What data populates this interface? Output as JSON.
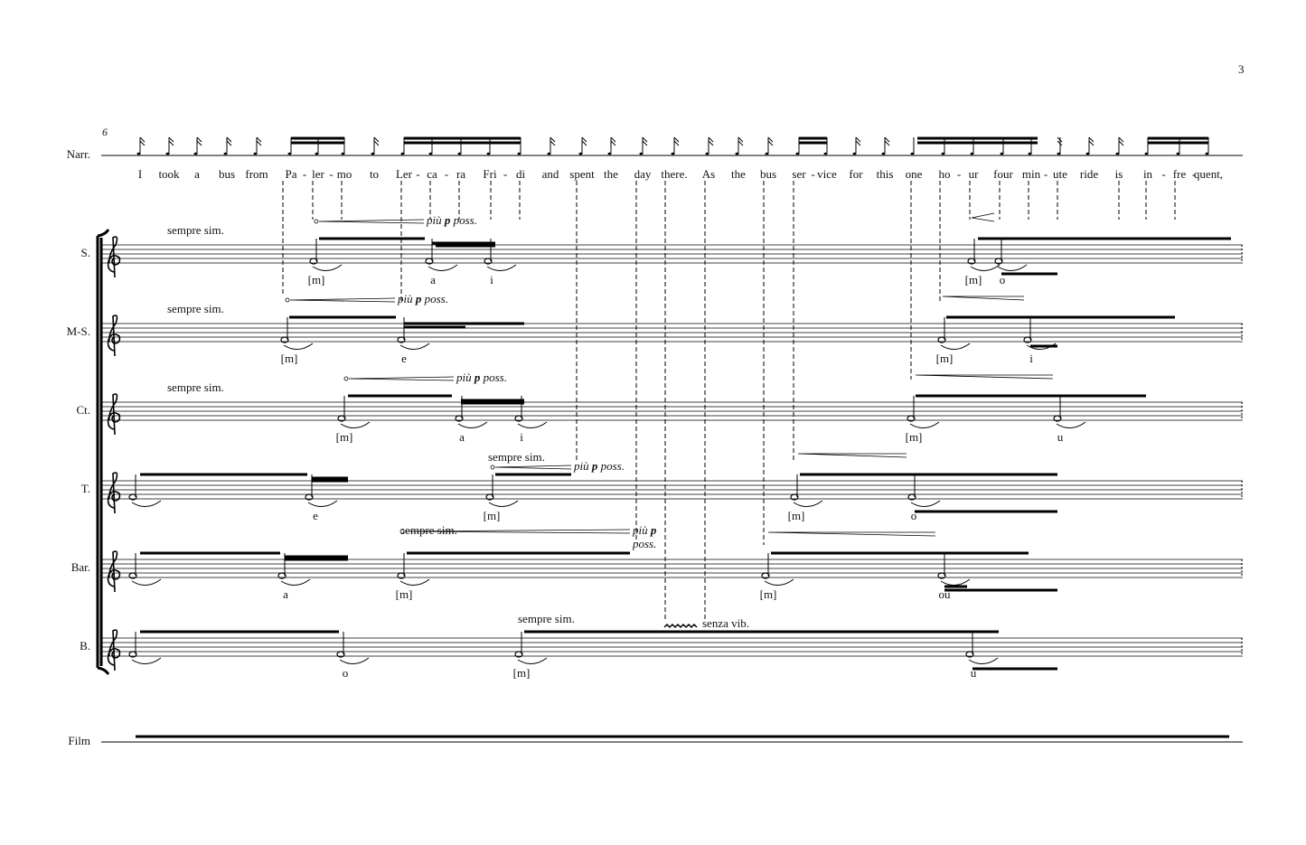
{
  "page_number": "3",
  "measure_number": "6",
  "narrator": {
    "label": "Narr.",
    "syllables": [
      "I",
      "took",
      "a",
      "bus",
      "from",
      "Pa",
      "-",
      "ler",
      "-",
      "mo",
      "to",
      "Ler",
      "-",
      "ca",
      "-",
      "ra",
      "Fri",
      "-",
      "di",
      "and",
      "spent",
      "the",
      "day",
      "there.",
      "As",
      "the",
      "bus",
      "ser",
      "-",
      "vice",
      "for",
      "this",
      "one",
      "ho",
      "-",
      "ur",
      "four",
      "min",
      "-",
      "ute",
      "ride",
      "is",
      "in",
      "-",
      "fre",
      "-",
      "quent,"
    ]
  },
  "staves": [
    {
      "label": "S.",
      "directions": [
        "sempre sim."
      ],
      "dynamics": [
        {
          "piu": "più",
          "p": "p",
          "poss": "poss."
        }
      ],
      "lyrics": [
        "[m]",
        "a",
        "i",
        "[m]",
        "o"
      ]
    },
    {
      "label": "M-S.",
      "directions": [
        "sempre sim."
      ],
      "dynamics": [
        {
          "piu": "più",
          "p": "p",
          "poss": "poss."
        }
      ],
      "lyrics": [
        "[m]",
        "e",
        "[m]",
        "i"
      ]
    },
    {
      "label": "Ct.",
      "directions": [
        "sempre sim."
      ],
      "dynamics": [
        {
          "piu": "più",
          "p": "p",
          "poss": "poss."
        }
      ],
      "lyrics": [
        "[m]",
        "a",
        "i",
        "[m]",
        "u"
      ]
    },
    {
      "label": "T.",
      "directions": [
        "sempre sim."
      ],
      "dynamics": [
        {
          "piu": "più",
          "p": "p",
          "poss": "poss."
        }
      ],
      "lyrics": [
        "e",
        "[m]",
        "[m]",
        "o"
      ]
    },
    {
      "label": "Bar.",
      "directions": [
        "sempre sim."
      ],
      "dynamics": [
        {
          "piu": "più",
          "p": "p",
          "poss": "poss."
        }
      ],
      "lyrics": [
        "a",
        "[m]",
        "[m]",
        "ou"
      ]
    },
    {
      "label": "B.",
      "directions": [
        "sempre sim.",
        "senza vib."
      ],
      "dynamics": [],
      "lyrics": [
        "o",
        "[m]",
        "u"
      ]
    }
  ],
  "film": {
    "label": "Film"
  }
}
